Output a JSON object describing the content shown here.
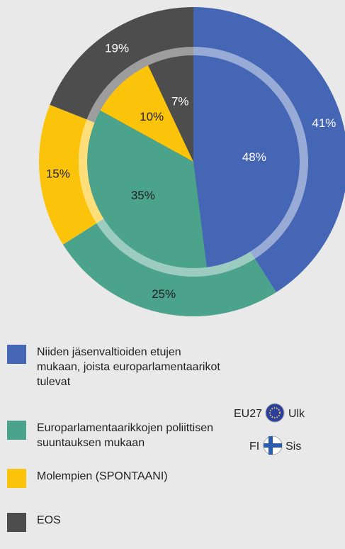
{
  "chart_data": {
    "type": "pie",
    "categories": [
      "Niiden jäsenvaltioiden etujen mukaan, joista europarlamentaarikot tulevat",
      "Europarlamentaarikkojen poliittisen suuntauksen mukaan",
      "Molempien (SPONTAANI)",
      "EOS"
    ],
    "colors": [
      "#4466b5",
      "#4aa38a",
      "#fbc40a",
      "#4d4d4d"
    ],
    "series": [
      {
        "name": "EU27",
        "label": "Ulk",
        "values": [
          41,
          25,
          15,
          19
        ],
        "value_labels": [
          "41%",
          "25%",
          "15%",
          "19%"
        ]
      },
      {
        "name": "FI",
        "label": "Sis",
        "values": [
          48,
          35,
          10,
          7
        ],
        "value_labels": [
          "48%",
          "35%",
          "10%",
          "7%"
        ]
      }
    ]
  }
}
